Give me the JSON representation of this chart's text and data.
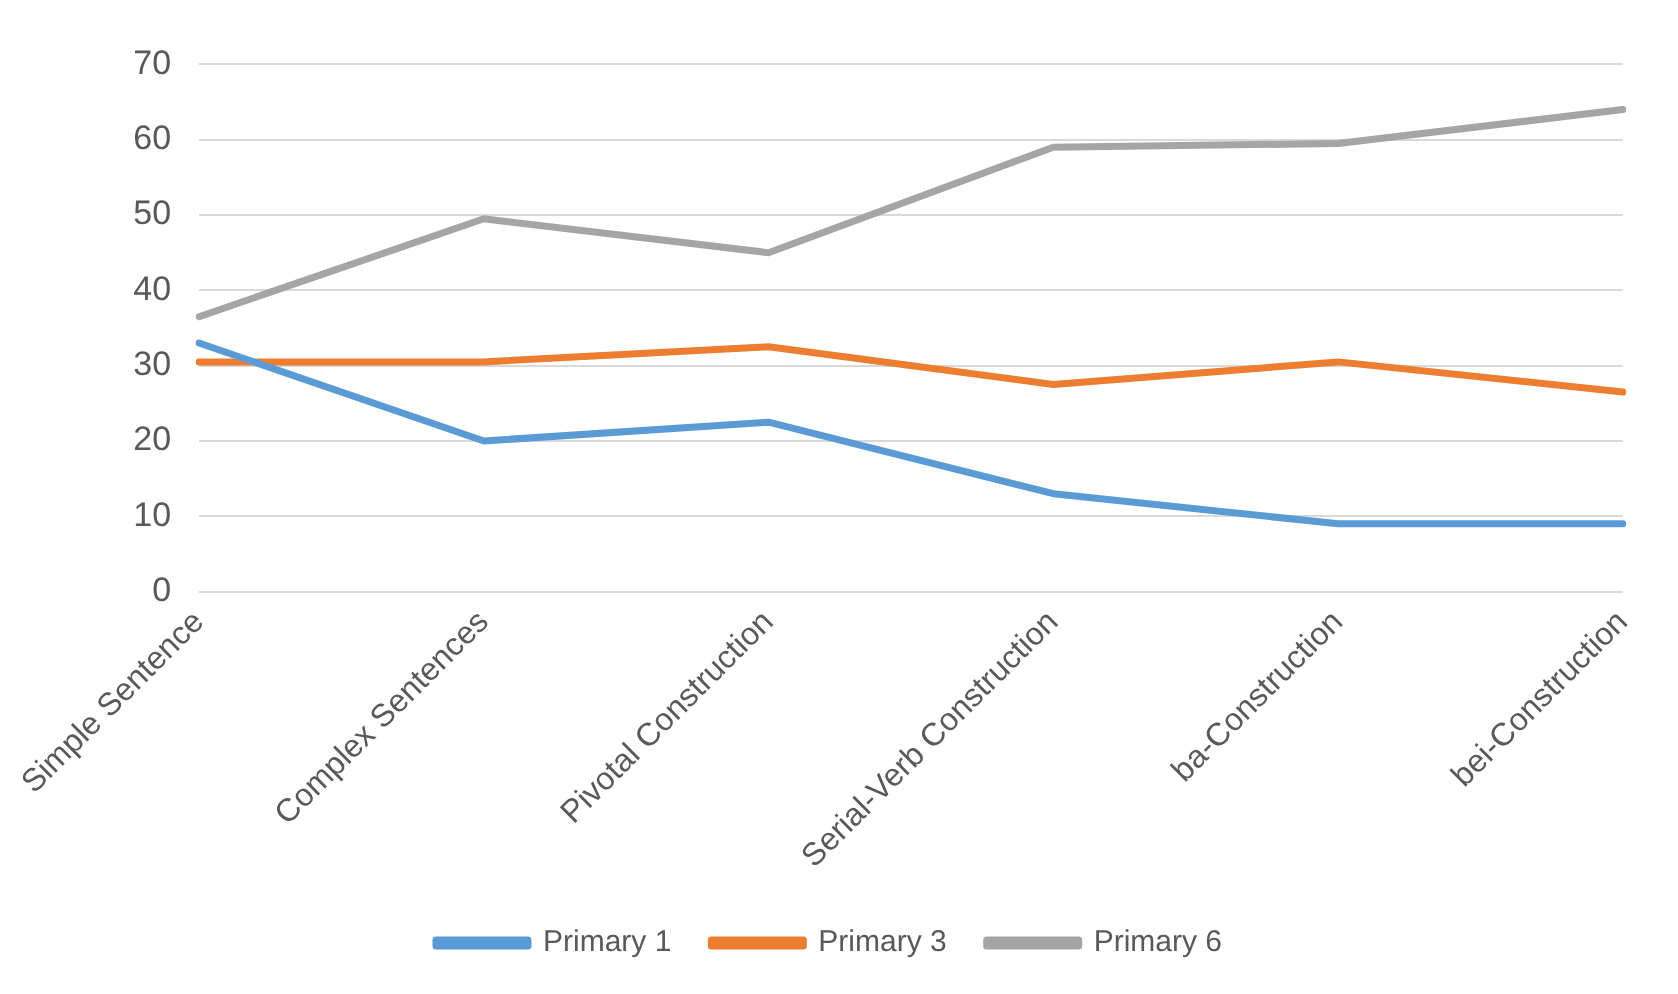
{
  "chart_data": {
    "type": "line",
    "categories": [
      "Simple Sentence",
      "Complex Sentences",
      "Pivotal Construction",
      "Serial-Verb Construction",
      "ba-Construction",
      "bei-Construction"
    ],
    "series": [
      {
        "name": "Primary 1",
        "color": "#5b9bd5",
        "values": [
          33,
          20,
          22.5,
          13,
          9,
          9
        ]
      },
      {
        "name": "Primary 3",
        "color": "#ed7d31",
        "values": [
          30.5,
          30.5,
          32.5,
          27.5,
          30.5,
          26.5
        ]
      },
      {
        "name": "Primary 6",
        "color": "#a5a5a5",
        "values": [
          36.5,
          49.5,
          45,
          59,
          59.5,
          64
        ]
      }
    ],
    "ylim": [
      0,
      70
    ],
    "yticks": [
      0,
      10,
      20,
      30,
      40,
      50,
      60,
      70
    ],
    "grid": "y",
    "legend": "bottom",
    "marker": "none",
    "line_style": "solid"
  }
}
